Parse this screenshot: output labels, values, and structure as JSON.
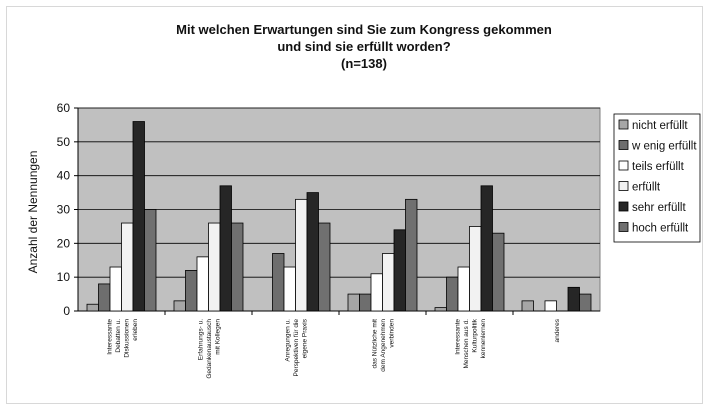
{
  "chart_data": {
    "type": "bar",
    "title_lines": [
      "Mit welchen Erwartungen sind Sie zum Kongress gekommen",
      "und sind sie erfüllt worden?",
      "(n=138)"
    ],
    "ylabel": "Anzahl der Nennungen",
    "ylim": [
      0,
      60
    ],
    "yticks": [
      0,
      10,
      20,
      30,
      40,
      50,
      60
    ],
    "grid": true,
    "legend_position": "right",
    "categories": [
      [
        "Interessante",
        "Debatten u.",
        "Diskussionen",
        "erleben"
      ],
      [
        "Erfahrungs- u.",
        "Gedankenaustausch",
        "mit Kollegen"
      ],
      [
        "Anregungen u.",
        "Perspektiven für die",
        "eigene Praxis"
      ],
      [
        "das Nützliche mit",
        "dem Angenehmen",
        "verbinden"
      ],
      [
        "Interessante",
        "Menschen aus d.",
        "Kulturpolitik",
        "kennenlernen"
      ],
      [
        "anderes"
      ]
    ],
    "series": [
      {
        "name": "nicht erfüllt",
        "color": "#a6a6a6",
        "values": [
          2,
          3,
          0,
          5,
          1,
          3
        ]
      },
      {
        "name": "w enig erfüllt",
        "color": "#6e6e6e",
        "values": [
          8,
          12,
          17,
          5,
          10,
          0
        ]
      },
      {
        "name": "teils erfüllt",
        "color": "#ffffff",
        "values": [
          13,
          16,
          13,
          11,
          13,
          3
        ]
      },
      {
        "name": "erfüllt",
        "color": "#f2f2f2",
        "values": [
          26,
          26,
          33,
          17,
          25,
          0
        ]
      },
      {
        "name": "sehr erfüllt",
        "color": "#262626",
        "values": [
          56,
          37,
          35,
          24,
          37,
          7
        ]
      },
      {
        "name": "hoch erfüllt",
        "color": "#707070",
        "values": [
          30,
          26,
          26,
          33,
          23,
          5
        ]
      }
    ],
    "plot_background": "#c0c0c0"
  }
}
